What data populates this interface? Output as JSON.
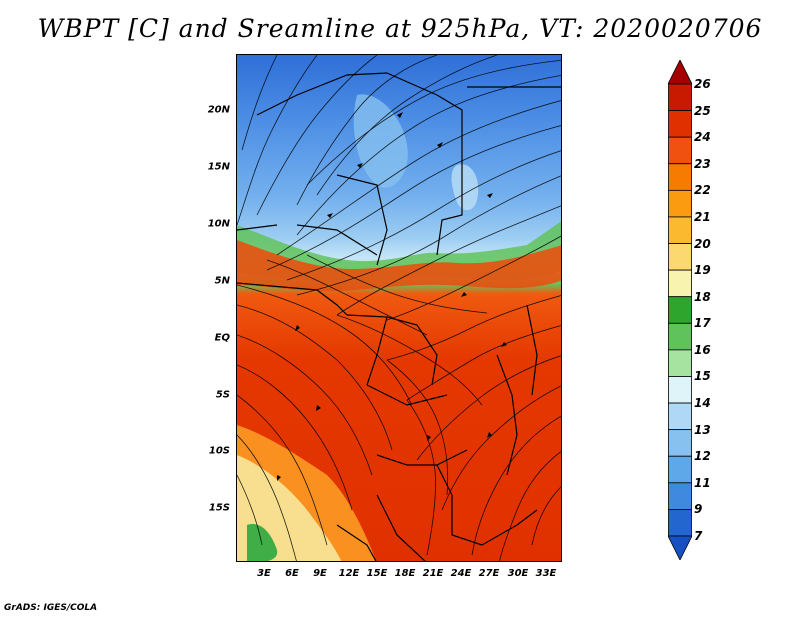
{
  "title": "WBPT [C] and Sreamline at 925hPa, VT: 2020020706",
  "footer": "GrADS: IGES/COLA",
  "y_axis_labels": [
    "20N",
    "15N",
    "10N",
    "5N",
    "EQ",
    "5S",
    "10S",
    "15S"
  ],
  "x_axis_labels": [
    "3E",
    "6E",
    "9E",
    "12E",
    "15E",
    "18E",
    "21E",
    "24E",
    "27E",
    "30E",
    "33E"
  ],
  "colorbar": {
    "labels": [
      "26",
      "25",
      "24",
      "23",
      "22",
      "21",
      "20",
      "19",
      "18",
      "17",
      "16",
      "15",
      "14",
      "13",
      "12",
      "11",
      "9",
      "7"
    ],
    "colors": [
      "#a50000",
      "#c81a00",
      "#e03000",
      "#f05010",
      "#f77b00",
      "#fa9b10",
      "#fbb92f",
      "#fcd870",
      "#f9f3b0",
      "#2ea62e",
      "#5fc25a",
      "#a6e3a0",
      "#dff4f8",
      "#aed8f5",
      "#86c1ef",
      "#5ea8ea",
      "#3f89df",
      "#2466cf",
      "#1750c0"
    ]
  },
  "map_colors": {
    "cold": "#2f6fd8",
    "cool": "#74b0ee",
    "light": "#c6e6f7",
    "green": "#62c35c",
    "hot": "#e43800",
    "warm": "#f05a10",
    "orange": "#f99020",
    "pale": "#f7df8f"
  }
}
